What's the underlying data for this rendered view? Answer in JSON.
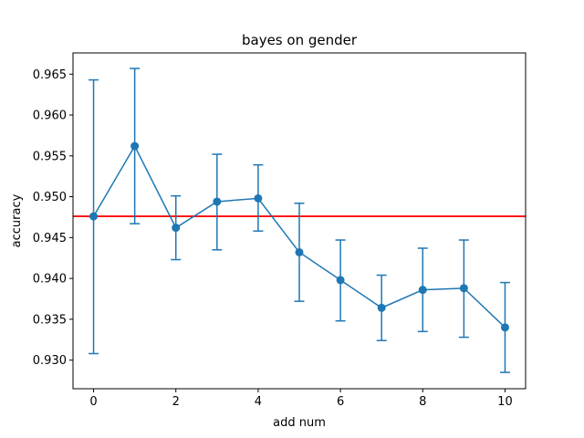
{
  "chart_data": {
    "type": "line",
    "title": "bayes on gender",
    "xlabel": "add num",
    "ylabel": "accuracy",
    "xlim": [
      -0.5,
      10.5
    ],
    "ylim": [
      0.9265,
      0.9676
    ],
    "xticks": [
      0,
      2,
      4,
      6,
      8,
      10
    ],
    "yticks": [
      0.93,
      0.935,
      0.94,
      0.945,
      0.95,
      0.955,
      0.96,
      0.965
    ],
    "ytick_labels": [
      "0.930",
      "0.935",
      "0.940",
      "0.945",
      "0.950",
      "0.955",
      "0.960",
      "0.965"
    ],
    "grid": false,
    "series": [
      {
        "x": [
          0,
          1,
          2,
          3,
          4,
          5,
          6,
          7,
          8,
          9,
          10
        ],
        "values": [
          0.9476,
          0.9562,
          0.9462,
          0.9494,
          0.9498,
          0.9432,
          0.9398,
          0.9364,
          0.9386,
          0.9388,
          0.934
        ],
        "err_low": [
          0.9308,
          0.9467,
          0.9423,
          0.9435,
          0.9458,
          0.9372,
          0.9348,
          0.9324,
          0.9335,
          0.9328,
          0.9285
        ],
        "err_high": [
          0.9643,
          0.9657,
          0.9501,
          0.9552,
          0.9539,
          0.9492,
          0.9447,
          0.9404,
          0.9437,
          0.9447,
          0.9395
        ],
        "color": "#1f77b4",
        "marker": "circle"
      }
    ],
    "hlines": [
      {
        "y": 0.9476,
        "color": "#ff0000"
      }
    ]
  }
}
